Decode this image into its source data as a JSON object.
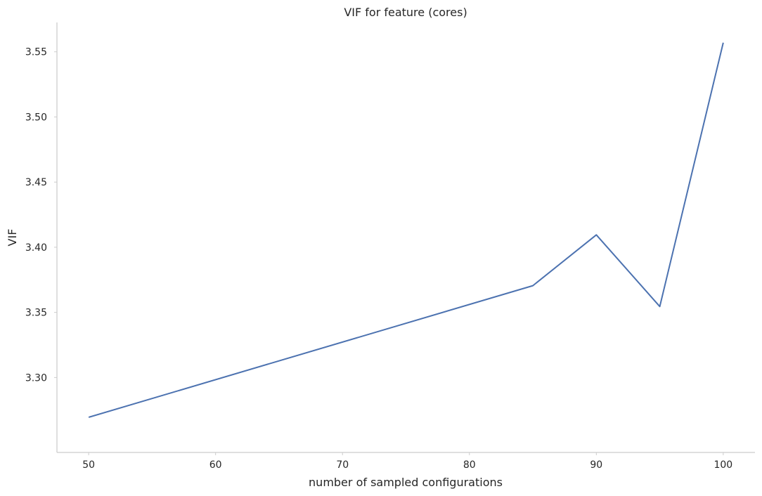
{
  "chart_data": {
    "type": "line",
    "title": "VIF for feature (cores)",
    "xlabel": "number of sampled configurations",
    "ylabel": "VIF",
    "xlim": [
      47.5,
      102.5
    ],
    "ylim": [
      3.2425,
      3.5725
    ],
    "xticks": [
      50,
      60,
      70,
      80,
      90,
      100
    ],
    "yticks": [
      3.3,
      3.35,
      3.4,
      3.45,
      3.5,
      3.55
    ],
    "xtick_labels": [
      "50",
      "60",
      "70",
      "80",
      "90",
      "100"
    ],
    "ytick_labels": [
      "3.30",
      "3.35",
      "3.40",
      "3.45",
      "3.50",
      "3.55"
    ],
    "grid": false,
    "series": [
      {
        "color": "#4c72b0",
        "x": [
          50,
          85,
          90,
          95,
          100
        ],
        "y": [
          3.2695,
          3.3705,
          3.4095,
          3.3545,
          3.557
        ]
      }
    ]
  }
}
